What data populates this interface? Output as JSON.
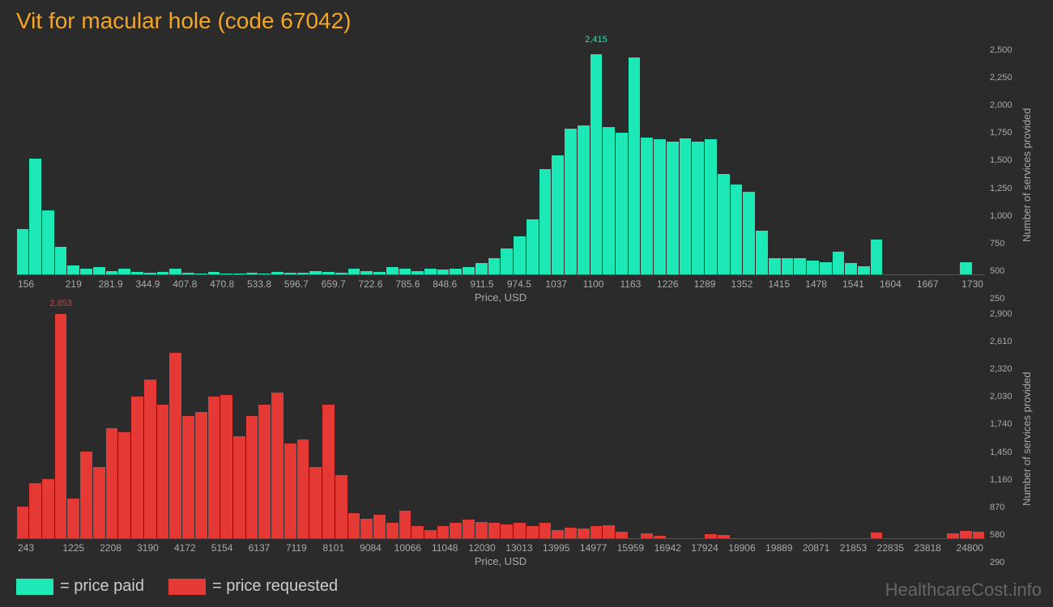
{
  "title": "Vit for macular hole (code 67042)",
  "watermark": "HealthcareCost.info",
  "legend": {
    "paid": "= price paid",
    "requested": "= price requested"
  },
  "chart_paid": {
    "type": "bar",
    "color": "#1de9b6",
    "background": "#2b2b2b",
    "xlabel": "Price, USD",
    "ylabel": "Number of services provided",
    "peak": {
      "value_label": "2,415",
      "value": 2415,
      "index": 45
    },
    "ymax": 2500,
    "yticks": [
      "250",
      "500",
      "750",
      "1,000",
      "1,250",
      "1,500",
      "1,750",
      "2,000",
      "2,250",
      "2,500"
    ],
    "xticks": [
      "156",
      "219",
      "281.9",
      "344.9",
      "407.8",
      "470.8",
      "533.8",
      "596.7",
      "659.7",
      "722.6",
      "785.6",
      "848.6",
      "911.5",
      "974.5",
      "1037",
      "1100",
      "1163",
      "1226",
      "1289",
      "1352",
      "1415",
      "1478",
      "1541",
      "1604",
      "1667",
      "1730"
    ],
    "values": [
      500,
      1270,
      700,
      300,
      100,
      60,
      80,
      40,
      60,
      30,
      20,
      30,
      60,
      20,
      10,
      30,
      10,
      10,
      20,
      10,
      30,
      20,
      20,
      40,
      30,
      20,
      60,
      40,
      30,
      80,
      60,
      40,
      60,
      50,
      60,
      80,
      120,
      180,
      280,
      420,
      600,
      1150,
      1300,
      1600,
      1630,
      2415,
      1610,
      1550,
      2380,
      1500,
      1480,
      1450,
      1490,
      1450,
      1480,
      1100,
      980,
      900,
      480,
      180,
      180,
      180,
      150,
      130,
      250,
      120,
      90,
      380,
      0,
      0,
      0,
      0,
      0,
      0,
      130,
      0
    ]
  },
  "chart_requested": {
    "type": "bar",
    "color": "#e53935",
    "background": "#2b2b2b",
    "xlabel": "Price, USD",
    "ylabel": "Number of services provided",
    "peak": {
      "value_label": "2,853",
      "value": 2853,
      "index": 3
    },
    "ymax": 2900,
    "yticks": [
      "290",
      "580",
      "870",
      "1,160",
      "1,450",
      "1,740",
      "2,030",
      "2,320",
      "2,610",
      "2,900"
    ],
    "xticks": [
      "243",
      "1225",
      "2208",
      "3190",
      "4172",
      "5154",
      "6137",
      "7119",
      "8101",
      "9084",
      "10066",
      "11048",
      "12030",
      "13013",
      "13995",
      "14977",
      "15959",
      "16942",
      "17924",
      "18906",
      "19889",
      "20871",
      "21853",
      "22835",
      "23818",
      "24800"
    ],
    "values": [
      400,
      700,
      750,
      2853,
      500,
      1100,
      900,
      1400,
      1350,
      1800,
      2020,
      1700,
      2350,
      1550,
      1600,
      1800,
      1820,
      1300,
      1550,
      1700,
      1850,
      1200,
      1250,
      900,
      1700,
      800,
      320,
      250,
      300,
      200,
      350,
      150,
      100,
      150,
      200,
      240,
      210,
      200,
      180,
      200,
      150,
      200,
      100,
      130,
      120,
      150,
      160,
      80,
      0,
      60,
      30,
      0,
      0,
      0,
      50,
      40,
      0,
      0,
      0,
      0,
      0,
      0,
      0,
      0,
      0,
      0,
      0,
      70,
      0,
      0,
      0,
      0,
      0,
      60,
      90,
      80
    ]
  }
}
